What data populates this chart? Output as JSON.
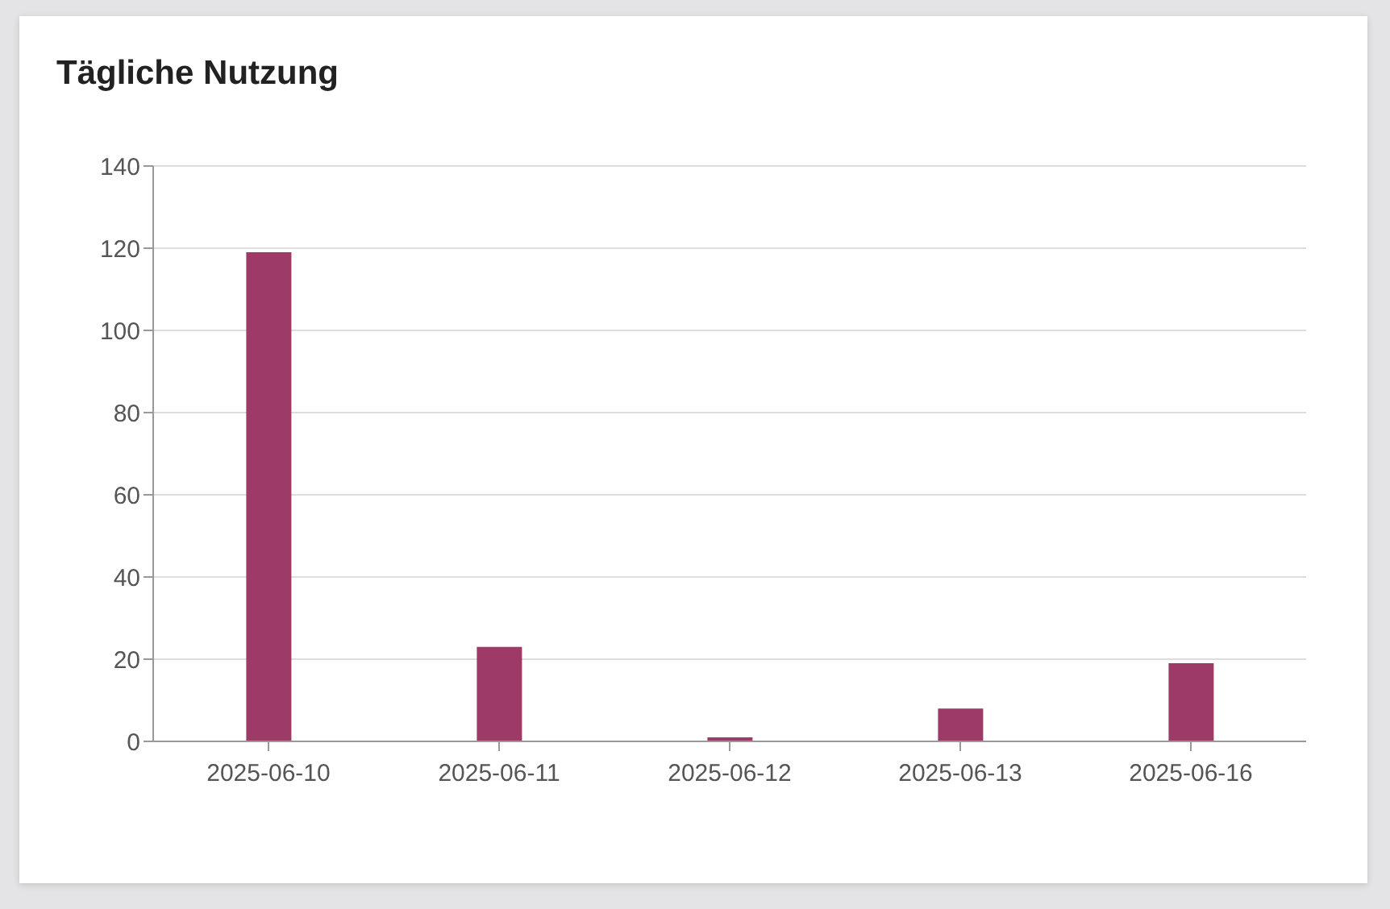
{
  "chart_data": {
    "type": "bar",
    "title": "Tägliche Nutzung",
    "categories": [
      "2025-06-10",
      "2025-06-11",
      "2025-06-12",
      "2025-06-13",
      "2025-06-16"
    ],
    "series": [
      {
        "color": "#9e3a68",
        "values": [
          119,
          23,
          1,
          8,
          19
        ]
      }
    ],
    "ylim": [
      0,
      140
    ],
    "yticks": [
      0,
      20,
      40,
      60,
      80,
      100,
      120,
      140
    ],
    "grid": "y",
    "legend": false
  }
}
